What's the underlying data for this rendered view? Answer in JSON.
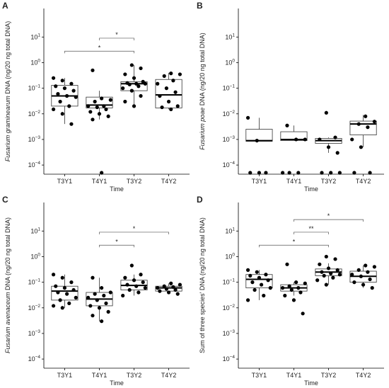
{
  "chart_data": [
    {
      "type": "box",
      "panel": "A",
      "ylabel_italic": "Fusarium graminearum",
      "ylabel": " DNA (ng/20 ng total DNA)",
      "xlabel": "Time",
      "categories": [
        "T3Y1",
        "T4Y1",
        "T3Y2",
        "T4Y2"
      ],
      "log": true,
      "ylim": [
        4.4e-05,
        130
      ],
      "yticks": [
        {
          "value": 0.0001,
          "label": "10",
          "sup": "−4"
        },
        {
          "value": 0.001,
          "label": "10",
          "sup": "−3"
        },
        {
          "value": 0.01,
          "label": "10",
          "sup": "−2"
        },
        {
          "value": 0.1,
          "label": "10",
          "sup": "−1"
        },
        {
          "value": 1,
          "label": "10",
          "sup": "0"
        },
        {
          "value": 10,
          "label": "10",
          "sup": "1"
        }
      ],
      "boxes": [
        {
          "whislo": 0.004,
          "q1": 0.02,
          "med": 0.05,
          "q3": 0.13,
          "whishi": 0.25,
          "points": [
            0.25,
            0.2,
            0.15,
            0.12,
            0.1,
            0.08,
            0.06,
            0.05,
            0.045,
            0.03,
            0.02,
            0.015,
            0.01,
            0.004
          ]
        },
        {
          "whislo": 0.006,
          "q1": 0.017,
          "med": 0.022,
          "q3": 0.045,
          "whishi": 0.08,
          "points": [
            0.5,
            0.04,
            0.035,
            0.03,
            0.02,
            0.02,
            0.018,
            0.015,
            0.012,
            0.01,
            0.008,
            0.006,
            5e-05
          ]
        },
        {
          "whislo": 0.02,
          "q1": 0.08,
          "med": 0.15,
          "q3": 0.18,
          "whishi": 0.8,
          "points": [
            0.8,
            0.6,
            0.35,
            0.25,
            0.18,
            0.16,
            0.15,
            0.15,
            0.14,
            0.12,
            0.1,
            0.08,
            0.05,
            0.03,
            0.02
          ]
        },
        {
          "whislo": 0.015,
          "q1": 0.017,
          "med": 0.055,
          "q3": 0.22,
          "whishi": 0.4,
          "points": [
            0.38,
            0.35,
            0.3,
            0.2,
            0.15,
            0.1,
            0.07,
            0.05,
            0.03,
            0.02,
            0.018,
            0.015
          ]
        }
      ],
      "brackets": [
        {
          "groups": [
            "T3Y1",
            "T3Y2"
          ],
          "y": 2.8,
          "label": "*"
        },
        {
          "groups": [
            "T4Y1",
            "T3Y2"
          ],
          "y": 9,
          "label": "*"
        }
      ]
    },
    {
      "type": "box",
      "panel": "B",
      "ylabel_italic": "Fusarium poae",
      "ylabel": " DNA (ng/20 ng total DNA)",
      "xlabel": "Time",
      "categories": [
        "T3Y1",
        "T4Y1",
        "T3Y2",
        "T4Y2"
      ],
      "log": true,
      "ylim": [
        4.4e-05,
        130
      ],
      "yticks": [
        {
          "value": 0.0001,
          "label": "10",
          "sup": "−4"
        },
        {
          "value": 0.001,
          "label": "10",
          "sup": "−3"
        },
        {
          "value": 0.01,
          "label": "10",
          "sup": "−2"
        },
        {
          "value": 0.1,
          "label": "10",
          "sup": "−1"
        },
        {
          "value": 1,
          "label": "10",
          "sup": "0"
        },
        {
          "value": 10,
          "label": "10",
          "sup": "1"
        }
      ],
      "boxes": [
        {
          "whislo": 0.00085,
          "q1": 0.00085,
          "med": 0.0009,
          "q3": 0.0025,
          "whishi": 0.007,
          "points": [
            0.007,
            0.0009,
            5e-05,
            5e-05,
            5e-05
          ]
        },
        {
          "whislo": 0.0009,
          "q1": 0.0009,
          "med": 0.001,
          "q3": 0.002,
          "whishi": 0.0035,
          "points": [
            0.0035,
            0.001,
            0.001,
            5e-05,
            5e-05,
            5e-05
          ]
        },
        {
          "whislo": 0.0003,
          "q1": 0.0007,
          "med": 0.0009,
          "q3": 0.0011,
          "whishi": 0.0012,
          "points": [
            0.011,
            0.0012,
            0.001,
            0.0005,
            0.0003,
            5e-05,
            5e-05,
            5e-05
          ]
        },
        {
          "whislo": 0.0005,
          "q1": 0.0015,
          "med": 0.004,
          "q3": 0.0052,
          "whishi": 0.009,
          "points": [
            0.008,
            0.005,
            0.004,
            0.003,
            0.001,
            0.0005,
            5e-05,
            5e-05
          ]
        }
      ],
      "brackets": []
    },
    {
      "type": "box",
      "panel": "C",
      "ylabel_italic": "Fusarium avenaceum",
      "ylabel": " DNA (ng/20 ng total DNA)",
      "xlabel": "Time",
      "categories": [
        "T3Y1",
        "T4Y1",
        "T3Y2",
        "T4Y2"
      ],
      "log": true,
      "ylim": [
        4.4e-05,
        130
      ],
      "yticks": [
        {
          "value": 0.0001,
          "label": "10",
          "sup": "−4"
        },
        {
          "value": 0.001,
          "label": "10",
          "sup": "−3"
        },
        {
          "value": 0.01,
          "label": "10",
          "sup": "−2"
        },
        {
          "value": 0.1,
          "label": "10",
          "sup": "−1"
        },
        {
          "value": 1,
          "label": "10",
          "sup": "0"
        },
        {
          "value": 10,
          "label": "10",
          "sup": "1"
        }
      ],
      "boxes": [
        {
          "whislo": 0.01,
          "q1": 0.02,
          "med": 0.045,
          "q3": 0.07,
          "whishi": 0.2,
          "points": [
            0.2,
            0.15,
            0.1,
            0.07,
            0.06,
            0.05,
            0.04,
            0.035,
            0.025,
            0.02,
            0.015,
            0.012,
            0.01
          ]
        },
        {
          "whislo": 0.003,
          "q1": 0.012,
          "med": 0.022,
          "q3": 0.04,
          "whishi": 0.15,
          "points": [
            0.15,
            0.06,
            0.04,
            0.035,
            0.03,
            0.025,
            0.02,
            0.015,
            0.012,
            0.01,
            0.007,
            0.005,
            0.003
          ]
        },
        {
          "whislo": 0.03,
          "q1": 0.05,
          "med": 0.075,
          "q3": 0.12,
          "whishi": 0.2,
          "points": [
            0.45,
            0.2,
            0.15,
            0.12,
            0.1,
            0.08,
            0.07,
            0.06,
            0.05,
            0.04,
            0.03
          ]
        },
        {
          "whislo": 0.035,
          "q1": 0.045,
          "med": 0.06,
          "q3": 0.07,
          "whishi": 0.09,
          "points": [
            0.09,
            0.08,
            0.07,
            0.065,
            0.06,
            0.055,
            0.05,
            0.045,
            0.04,
            0.035
          ]
        }
      ],
      "brackets": [
        {
          "groups": [
            "T4Y1",
            "T3Y2"
          ],
          "y": 2.8,
          "label": "*"
        },
        {
          "groups": [
            "T4Y1",
            "T4Y2"
          ],
          "y": 9,
          "label": "*"
        }
      ]
    },
    {
      "type": "box",
      "panel": "D",
      "ylabel": "Sum of three species' DNA (ng/20 ng total DNA)",
      "xlabel": "Time",
      "categories": [
        "T3Y1",
        "T4Y1",
        "T3Y2",
        "T4Y2"
      ],
      "log": true,
      "ylim": [
        4.4e-05,
        130
      ],
      "yticks": [
        {
          "value": 0.0001,
          "label": "10",
          "sup": "−4"
        },
        {
          "value": 0.001,
          "label": "10",
          "sup": "−3"
        },
        {
          "value": 0.01,
          "label": "10",
          "sup": "−2"
        },
        {
          "value": 0.1,
          "label": "10",
          "sup": "−1"
        },
        {
          "value": 1,
          "label": "10",
          "sup": "0"
        },
        {
          "value": 10,
          "label": "10",
          "sup": "1"
        }
      ],
      "boxes": [
        {
          "whislo": 0.02,
          "q1": 0.06,
          "med": 0.13,
          "q3": 0.2,
          "whishi": 0.3,
          "points": [
            0.3,
            0.25,
            0.2,
            0.18,
            0.15,
            0.12,
            0.1,
            0.08,
            0.06,
            0.05,
            0.03,
            0.02
          ]
        },
        {
          "whislo": 0.03,
          "q1": 0.045,
          "med": 0.06,
          "q3": 0.08,
          "whishi": 0.1,
          "points": [
            0.5,
            0.1,
            0.09,
            0.07,
            0.06,
            0.06,
            0.05,
            0.04,
            0.03,
            0.02,
            0.006
          ]
        },
        {
          "whislo": 0.08,
          "q1": 0.18,
          "med": 0.25,
          "q3": 0.33,
          "whishi": 0.55,
          "points": [
            1.0,
            0.8,
            0.5,
            0.35,
            0.3,
            0.25,
            0.22,
            0.2,
            0.18,
            0.15,
            0.12,
            0.08
          ]
        },
        {
          "whislo": 0.06,
          "q1": 0.1,
          "med": 0.17,
          "q3": 0.27,
          "whishi": 0.45,
          "points": [
            0.45,
            0.4,
            0.3,
            0.25,
            0.2,
            0.17,
            0.13,
            0.1,
            0.08,
            0.06
          ]
        }
      ],
      "brackets": [
        {
          "groups": [
            "T3Y1",
            "T3Y2"
          ],
          "y": 2.8,
          "label": "*"
        },
        {
          "groups": [
            "T4Y1",
            "T3Y2"
          ],
          "y": 9,
          "label": "**"
        },
        {
          "groups": [
            "T4Y1",
            "T4Y2"
          ],
          "y": 28,
          "label": "*"
        }
      ]
    }
  ]
}
